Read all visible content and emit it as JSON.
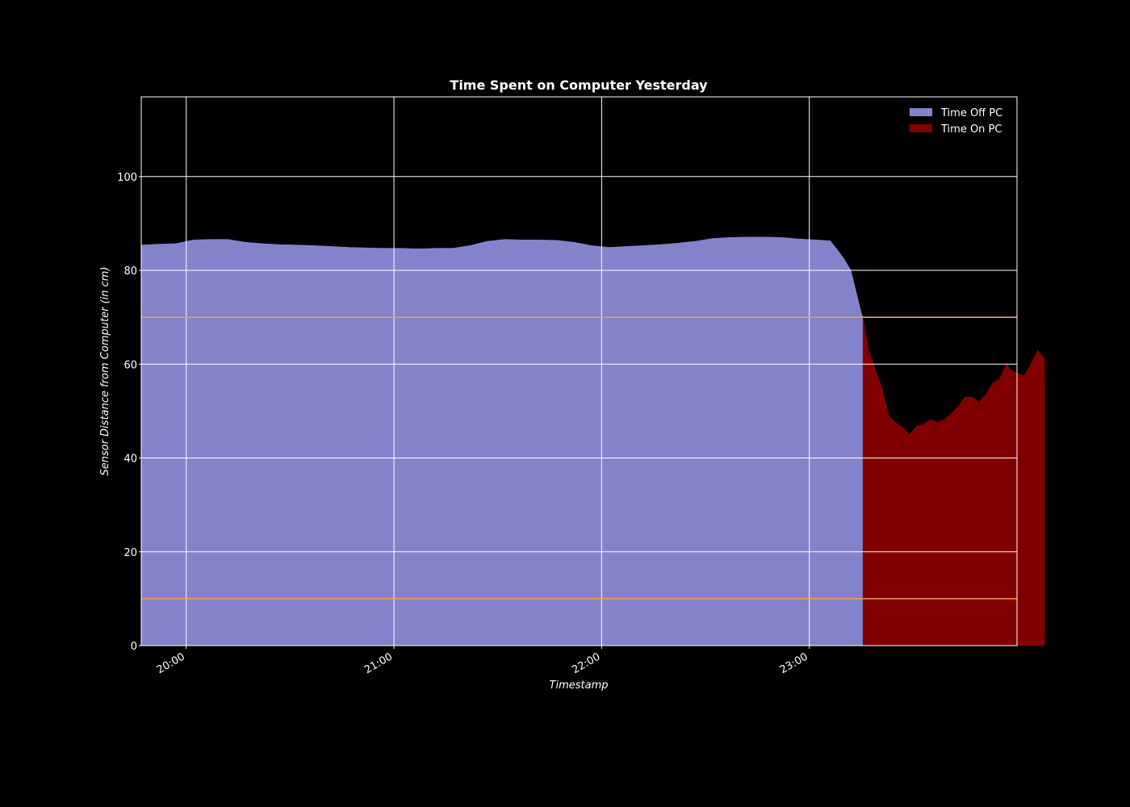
{
  "chart_data": {
    "type": "area",
    "title": "Time Spent on Computer Yesterday",
    "xlabel": "Timestamp",
    "ylabel": "Sensor Distance from Computer (in cm)",
    "xlim": [
      "19:47",
      "24:00"
    ],
    "ylim": [
      0,
      117
    ],
    "x_ticks": [
      "20:00",
      "21:00",
      "22:00",
      "23:00"
    ],
    "y_ticks": [
      0,
      20,
      40,
      60,
      80,
      100
    ],
    "grid": true,
    "legend_position": "top-right",
    "threshold_lines": [
      70,
      10
    ],
    "series": [
      {
        "name": "Time Off PC",
        "color": "#8383cc",
        "points": [
          [
            "19:47",
            85.4
          ],
          [
            "19:52",
            85.6
          ],
          [
            "19:57",
            85.7
          ],
          [
            "20:02",
            86.5
          ],
          [
            "20:07",
            86.6
          ],
          [
            "20:12",
            86.6
          ],
          [
            "20:17",
            86.0
          ],
          [
            "20:22",
            85.7
          ],
          [
            "20:27",
            85.5
          ],
          [
            "20:32",
            85.4
          ],
          [
            "20:37",
            85.3
          ],
          [
            "20:42",
            85.1
          ],
          [
            "20:47",
            84.9
          ],
          [
            "20:52",
            84.8
          ],
          [
            "20:57",
            84.7
          ],
          [
            "21:02",
            84.7
          ],
          [
            "21:07",
            84.6
          ],
          [
            "21:12",
            84.7
          ],
          [
            "21:17",
            84.7
          ],
          [
            "21:22",
            85.3
          ],
          [
            "21:27",
            86.2
          ],
          [
            "21:32",
            86.6
          ],
          [
            "21:37",
            86.5
          ],
          [
            "21:42",
            86.5
          ],
          [
            "21:47",
            86.4
          ],
          [
            "21:52",
            86.0
          ],
          [
            "21:57",
            85.3
          ],
          [
            "22:02",
            84.9
          ],
          [
            "22:07",
            85.1
          ],
          [
            "22:12",
            85.3
          ],
          [
            "22:17",
            85.5
          ],
          [
            "22:22",
            85.8
          ],
          [
            "22:27",
            86.2
          ],
          [
            "22:32",
            86.8
          ],
          [
            "22:37",
            87.0
          ],
          [
            "22:42",
            87.1
          ],
          [
            "22:47",
            87.1
          ],
          [
            "22:52",
            87.0
          ],
          [
            "22:57",
            86.7
          ],
          [
            "23:02",
            86.5
          ],
          [
            "23:06",
            86.3
          ],
          [
            "23:08",
            84.5
          ],
          [
            "23:10",
            82.5
          ],
          [
            "23:12",
            80.0
          ],
          [
            "23:13",
            77.0
          ],
          [
            "23:14",
            74.0
          ],
          [
            "23:15",
            71.0
          ],
          [
            "23:15.5",
            70.0
          ]
        ]
      },
      {
        "name": "Time On PC",
        "color": "#800000",
        "points": [
          [
            "23:15.5",
            70.0
          ],
          [
            "23:17",
            63.5
          ],
          [
            "23:19",
            59.0
          ],
          [
            "23:21",
            55.0
          ],
          [
            "23:23",
            49.0
          ],
          [
            "23:25",
            47.5
          ],
          [
            "23:27",
            46.5
          ],
          [
            "23:29",
            45.0
          ],
          [
            "23:31",
            46.8
          ],
          [
            "23:33",
            47.2
          ],
          [
            "23:35",
            48.2
          ],
          [
            "23:37",
            47.6
          ],
          [
            "23:39",
            48.2
          ],
          [
            "23:41",
            49.5
          ],
          [
            "23:43",
            51.0
          ],
          [
            "23:45",
            53.0
          ],
          [
            "23:47",
            53.0
          ],
          [
            "23:49",
            52.0
          ],
          [
            "23:51",
            53.5
          ],
          [
            "23:53",
            56.0
          ],
          [
            "23:55",
            56.8
          ],
          [
            "23:56",
            58.5
          ],
          [
            "23:57",
            60.0
          ],
          [
            "23:58",
            59.0
          ],
          [
            "24:00",
            58.0
          ],
          [
            "24:02",
            57.5
          ],
          [
            "24:04",
            60.0
          ],
          [
            "24:06",
            63.0
          ],
          [
            "24:08",
            61.0
          ]
        ]
      }
    ],
    "threshold_color": "#f5a040",
    "grid_color": "#ffffff"
  }
}
